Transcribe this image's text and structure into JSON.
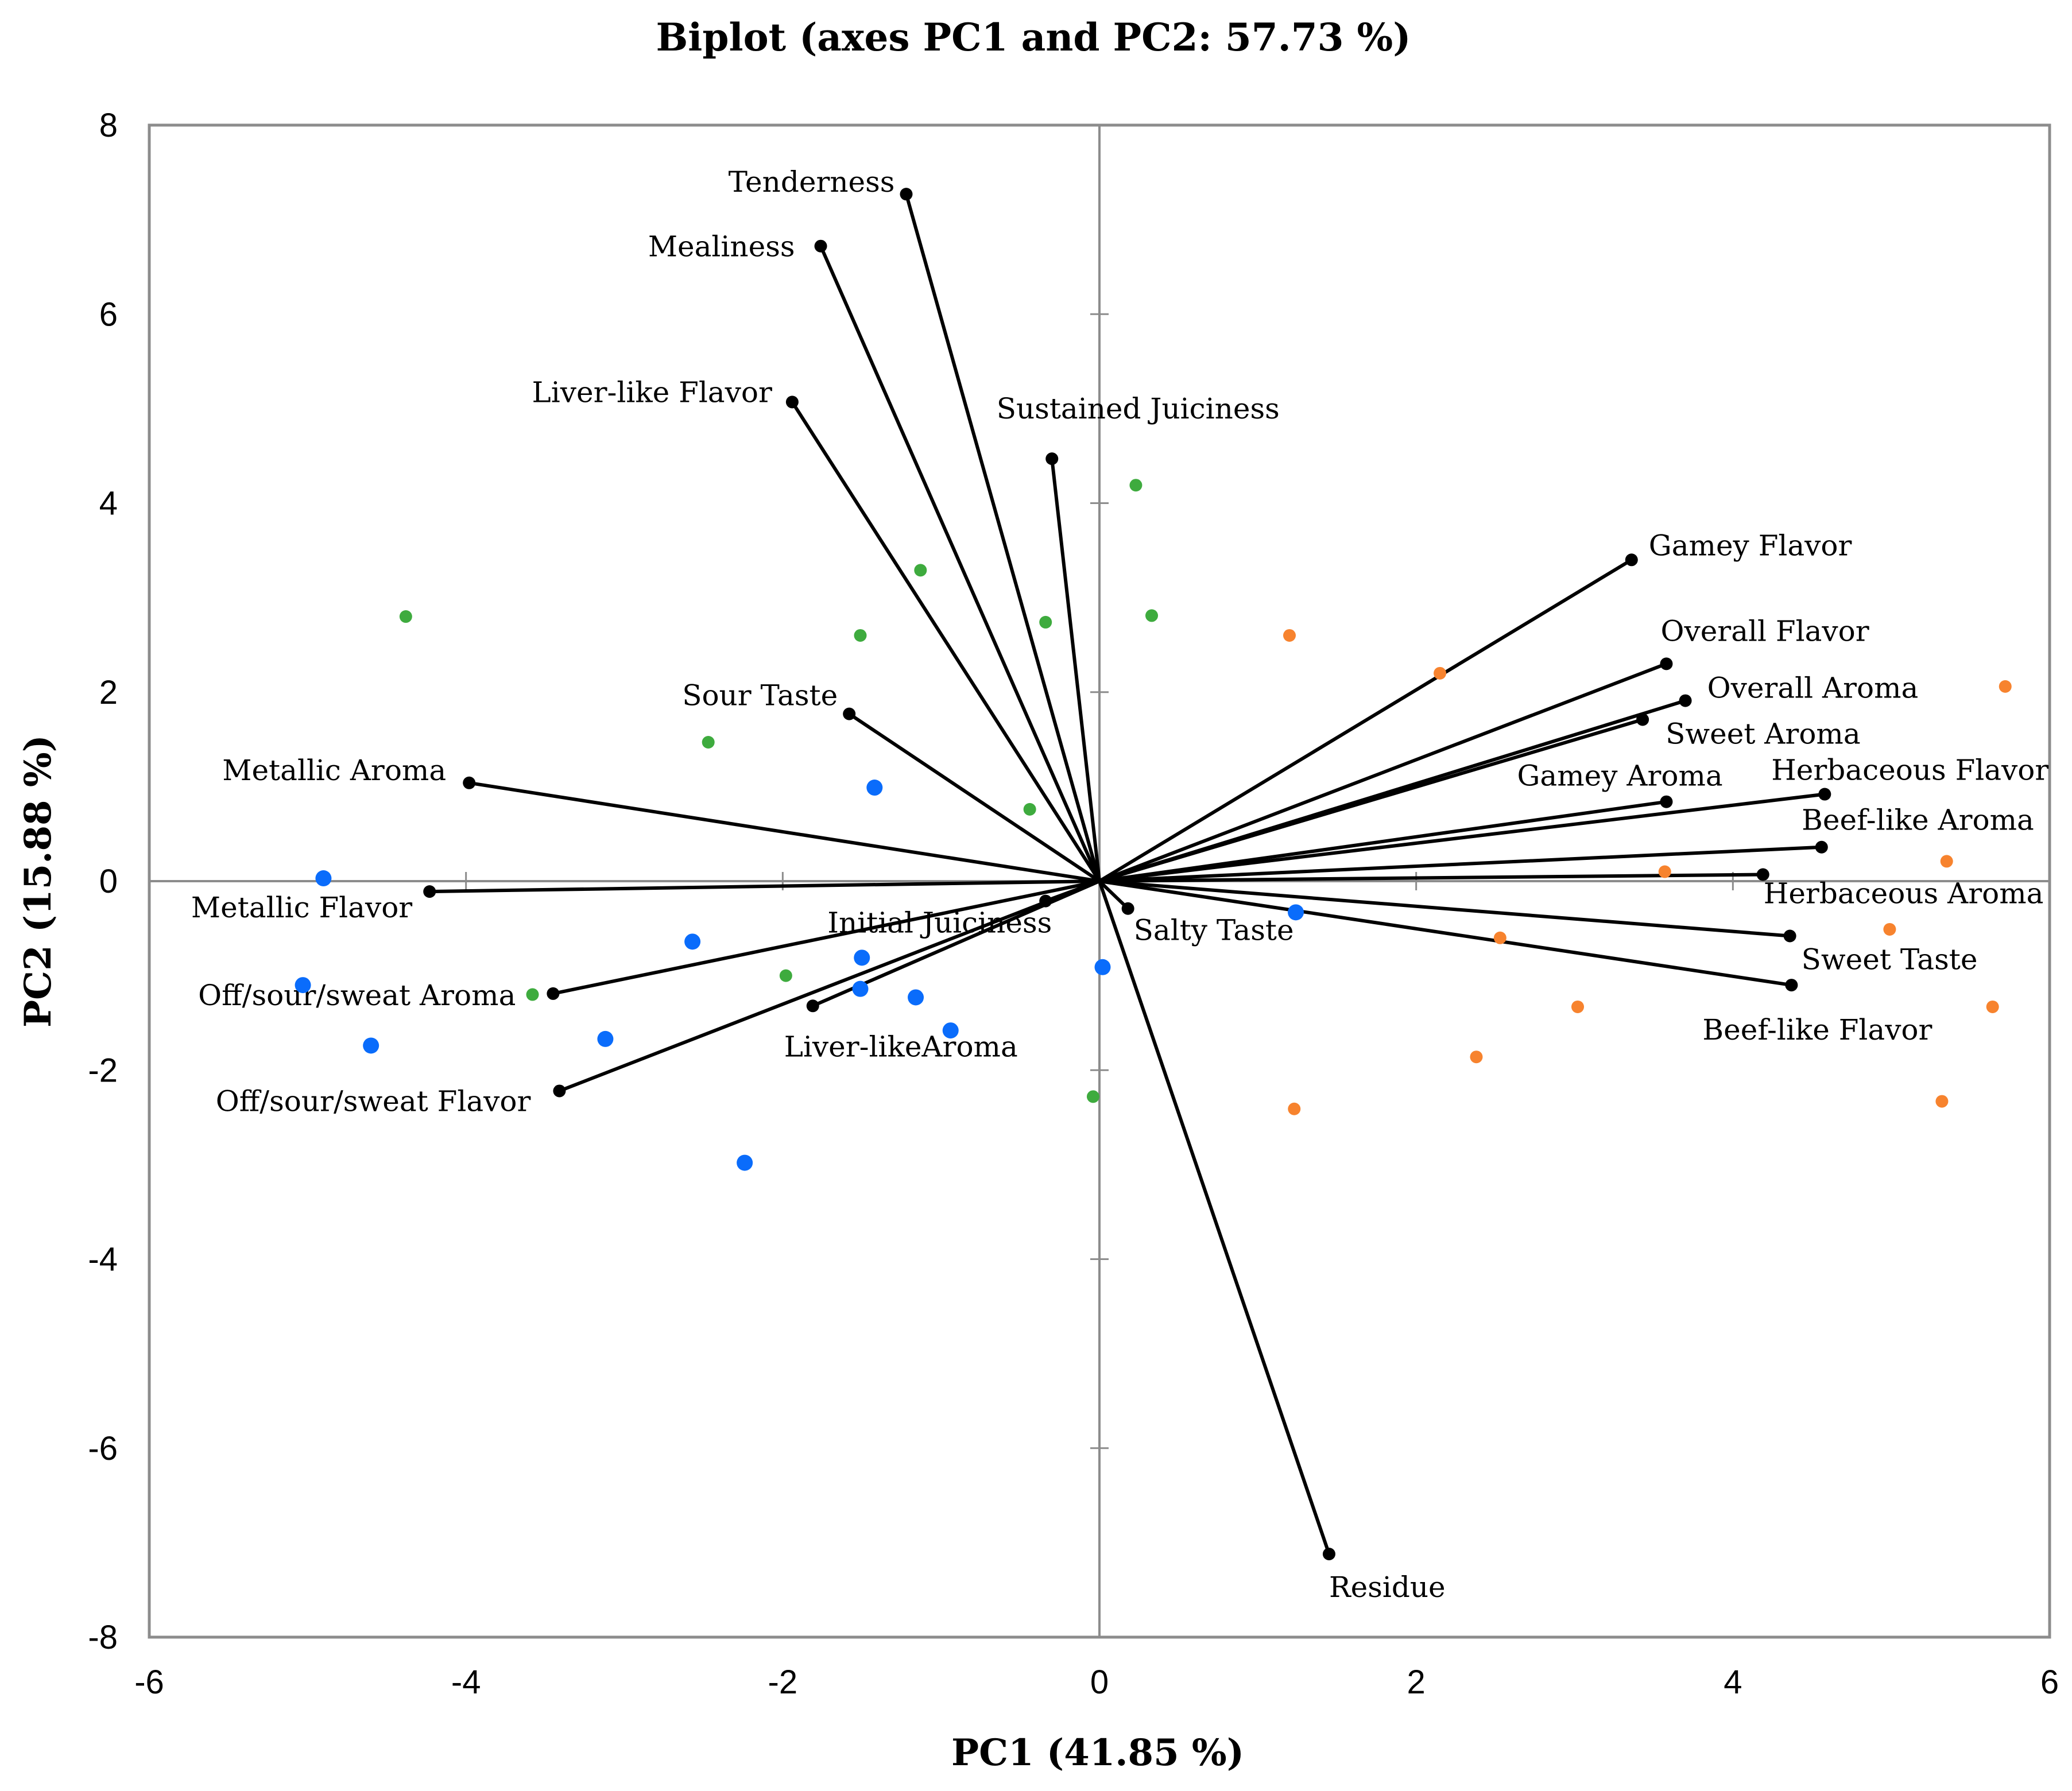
{
  "chart_data": {
    "type": "scatter",
    "subtype": "biplot",
    "title": "Biplot (axes PC1 and PC2: 57.73 %)",
    "xlabel": "PC1 (41.85 %)",
    "ylabel": "PC2 (15.88 %)",
    "xlim": [
      -6,
      6
    ],
    "ylim": [
      -8,
      8
    ],
    "xticks": [
      "-6",
      "-4",
      "-2",
      "0",
      "2",
      "4",
      "6"
    ],
    "yticks": [
      "8",
      "6",
      "4",
      "2",
      "0",
      "-2",
      "-4",
      "-6",
      "-8"
    ],
    "grid": false,
    "vectors": [
      {
        "name": "Tenderness",
        "x": -1.22,
        "y": 7.27
      },
      {
        "name": "Mealiness",
        "x": -1.76,
        "y": 6.72
      },
      {
        "name": "Liver-like Flavor",
        "x": -1.94,
        "y": 5.07
      },
      {
        "name": "Sustained Juiciness",
        "x": -0.3,
        "y": 4.47
      },
      {
        "name": "Gamey Flavor",
        "x": 3.36,
        "y": 3.4
      },
      {
        "name": "Overall Flavor",
        "x": 3.58,
        "y": 2.3
      },
      {
        "name": "Overall Aroma",
        "x": 3.7,
        "y": 1.91
      },
      {
        "name": "Sweet Aroma",
        "x": 3.43,
        "y": 1.71
      },
      {
        "name": "Gamey Aroma",
        "x": 3.58,
        "y": 0.84
      },
      {
        "name": "Herbaceous Flavor",
        "x": 4.58,
        "y": 0.92
      },
      {
        "name": "Beef-like Aroma",
        "x": 4.56,
        "y": 0.36
      },
      {
        "name": "Herbaceous Aroma",
        "x": 4.19,
        "y": 0.07
      },
      {
        "name": "Sweet Taste",
        "x": 4.36,
        "y": -0.58
      },
      {
        "name": "Beef-like Flavor",
        "x": 4.37,
        "y": -1.1
      },
      {
        "name": "Salty Taste",
        "x": 0.18,
        "y": -0.29
      },
      {
        "name": "Residue",
        "x": 1.45,
        "y": -7.12
      },
      {
        "name": "Sour Taste",
        "x": -1.58,
        "y": 1.77
      },
      {
        "name": "Metallic Aroma",
        "x": -3.98,
        "y": 1.04
      },
      {
        "name": "Metallic Flavor",
        "x": -4.23,
        "y": -0.11
      },
      {
        "name": "Initial Juiciness",
        "x": -0.34,
        "y": -0.21
      },
      {
        "name": "Off/sour/sweat Aroma",
        "x": -3.45,
        "y": -1.19
      },
      {
        "name": "Liver-likeAroma",
        "x": -1.81,
        "y": -1.32
      },
      {
        "name": "Off/sour/sweat Flavor",
        "x": -3.41,
        "y": -2.22
      }
    ],
    "series": [
      {
        "name": "green",
        "color": "#3eab3e",
        "points": [
          [
            -4.38,
            2.8
          ],
          [
            -2.47,
            1.47
          ],
          [
            -1.51,
            2.6
          ],
          [
            -1.13,
            3.29
          ],
          [
            -0.34,
            2.74
          ],
          [
            0.23,
            4.19
          ],
          [
            0.33,
            2.81
          ],
          [
            -0.44,
            0.76
          ],
          [
            -1.98,
            -1.0
          ],
          [
            -3.58,
            -1.2
          ],
          [
            -0.04,
            -2.28
          ]
        ]
      },
      {
        "name": "blue",
        "color": "#0a6cfb",
        "points": [
          [
            -4.9,
            0.03
          ],
          [
            -5.03,
            -1.1
          ],
          [
            -4.6,
            -1.74
          ],
          [
            -3.12,
            -1.67
          ],
          [
            -2.57,
            -0.64
          ],
          [
            -2.24,
            -2.98
          ],
          [
            -1.42,
            0.99
          ],
          [
            -1.5,
            -0.81
          ],
          [
            -1.51,
            -1.14
          ],
          [
            -1.16,
            -1.23
          ],
          [
            -0.94,
            -1.58
          ],
          [
            0.02,
            -0.91
          ],
          [
            1.24,
            -0.33
          ]
        ]
      },
      {
        "name": "orange",
        "color": "#f7832e",
        "points": [
          [
            1.2,
            2.6
          ],
          [
            2.15,
            2.2
          ],
          [
            2.53,
            -0.6
          ],
          [
            2.38,
            -1.86
          ],
          [
            3.02,
            -1.33
          ],
          [
            3.57,
            0.1
          ],
          [
            1.23,
            -2.41
          ],
          [
            4.99,
            -0.51
          ],
          [
            5.35,
            0.21
          ],
          [
            5.72,
            2.06
          ],
          [
            5.64,
            -1.33
          ],
          [
            5.32,
            -2.33
          ]
        ]
      }
    ]
  }
}
